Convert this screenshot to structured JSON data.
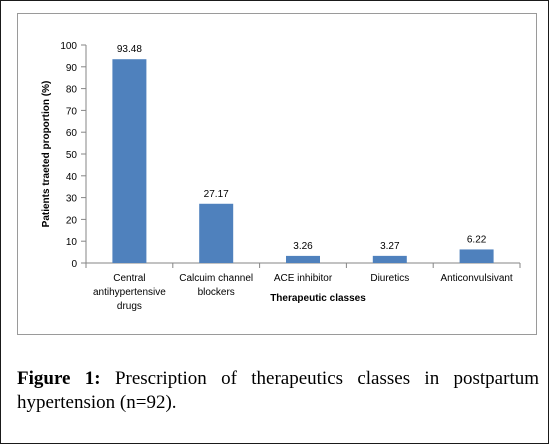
{
  "chart_data": {
    "type": "bar",
    "categories": [
      [
        "Central",
        "antihypertensive",
        "drugs"
      ],
      [
        "Calcuim channel",
        "blockers"
      ],
      [
        "ACE inhibitor"
      ],
      [
        "Diuretics"
      ],
      [
        "Anticonvulsivant"
      ]
    ],
    "values": [
      93.48,
      27.17,
      3.26,
      3.27,
      6.22
    ],
    "value_labels": [
      "93.48",
      "27.17",
      "3.26",
      "3.27",
      "6.22"
    ],
    "xlabel": "Therapeutic classes",
    "ylabel": "Patients traeted proportion (%)",
    "ylim": [
      0,
      100
    ],
    "yticks": [
      0,
      10,
      20,
      30,
      40,
      50,
      60,
      70,
      80,
      90,
      100
    ],
    "grid": false,
    "bar_color": "#4f81bd"
  },
  "caption": {
    "label": "Figure 1:",
    "text_line1": "Prescription of therapeutics classes in postpartum",
    "text_line2": "hypertension (n=92)."
  }
}
